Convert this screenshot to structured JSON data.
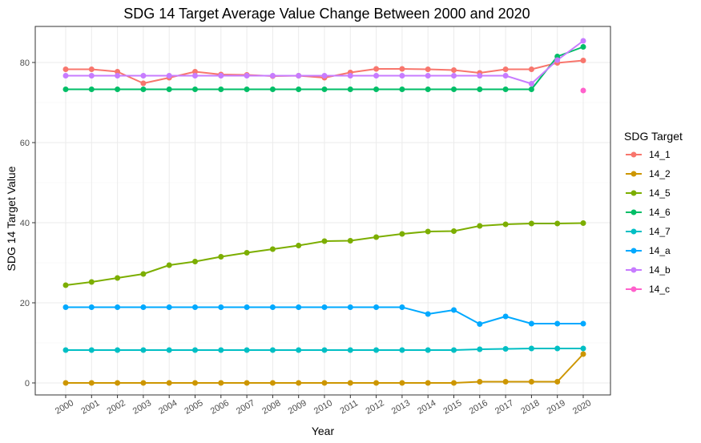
{
  "chart_data": {
    "type": "line",
    "title": "SDG 14 Target Average Value Change Between 2000 and 2020",
    "xlabel": "Year",
    "ylabel": "SDG 14 Target Value",
    "ylim": [
      -3,
      89
    ],
    "yticks": [
      0,
      20,
      40,
      60,
      80
    ],
    "categories": [
      "2000",
      "2001",
      "2002",
      "2003",
      "2004",
      "2005",
      "2006",
      "2007",
      "2008",
      "2009",
      "2010",
      "2011",
      "2012",
      "2013",
      "2014",
      "2015",
      "2016",
      "2017",
      "2018",
      "2019",
      "2020"
    ],
    "grid": true,
    "legend": {
      "title": "SDG Target",
      "position": "right"
    },
    "series": [
      {
        "name": "14_1",
        "color": "#F8766D",
        "values": [
          78.3,
          78.3,
          77.7,
          74.8,
          76.2,
          77.7,
          77.0,
          76.9,
          76.6,
          76.7,
          76.2,
          77.5,
          78.4,
          78.4,
          78.3,
          78.1,
          77.4,
          78.3,
          78.3,
          79.9,
          80.5
        ]
      },
      {
        "name": "14_2",
        "color": "#CD9600",
        "values": [
          0,
          0,
          0,
          0,
          0,
          0,
          0,
          0,
          0,
          0,
          0,
          0,
          0,
          0,
          0,
          0,
          0.3,
          0.3,
          0.3,
          0.3,
          7.2
        ]
      },
      {
        "name": "14_5",
        "color": "#7CAE00",
        "values": [
          24.4,
          25.2,
          26.2,
          27.2,
          29.4,
          30.3,
          31.5,
          32.5,
          33.4,
          34.3,
          35.4,
          35.5,
          36.4,
          37.2,
          37.8,
          37.9,
          39.2,
          39.6,
          39.8,
          39.8,
          39.9
        ]
      },
      {
        "name": "14_6",
        "color": "#00BE67",
        "values": [
          73.3,
          73.3,
          73.3,
          73.3,
          73.3,
          73.3,
          73.3,
          73.3,
          73.3,
          73.3,
          73.3,
          73.3,
          73.3,
          73.3,
          73.3,
          73.3,
          73.3,
          73.3,
          73.3,
          81.5,
          83.9
        ]
      },
      {
        "name": "14_7",
        "color": "#00BFC4",
        "values": [
          8.2,
          8.2,
          8.2,
          8.2,
          8.2,
          8.2,
          8.2,
          8.2,
          8.2,
          8.2,
          8.2,
          8.2,
          8.2,
          8.2,
          8.2,
          8.2,
          8.4,
          8.5,
          8.6,
          8.6,
          8.6
        ]
      },
      {
        "name": "14_a",
        "color": "#00A9FF",
        "values": [
          18.9,
          18.9,
          18.9,
          18.9,
          18.9,
          18.9,
          18.9,
          18.9,
          18.9,
          18.9,
          18.9,
          18.9,
          18.9,
          18.9,
          17.2,
          18.2,
          14.7,
          16.6,
          14.8,
          14.8,
          14.8
        ]
      },
      {
        "name": "14_b",
        "color": "#C77CFF",
        "values": [
          76.7,
          76.7,
          76.7,
          76.7,
          76.7,
          76.7,
          76.7,
          76.7,
          76.7,
          76.7,
          76.7,
          76.7,
          76.7,
          76.7,
          76.7,
          76.7,
          76.7,
          76.7,
          74.7,
          80.6,
          85.4
        ]
      },
      {
        "name": "14_c",
        "color": "#FF61CC",
        "values": [
          null,
          null,
          null,
          null,
          null,
          null,
          null,
          null,
          null,
          null,
          null,
          null,
          null,
          null,
          null,
          null,
          null,
          null,
          null,
          null,
          73.0
        ]
      }
    ]
  }
}
